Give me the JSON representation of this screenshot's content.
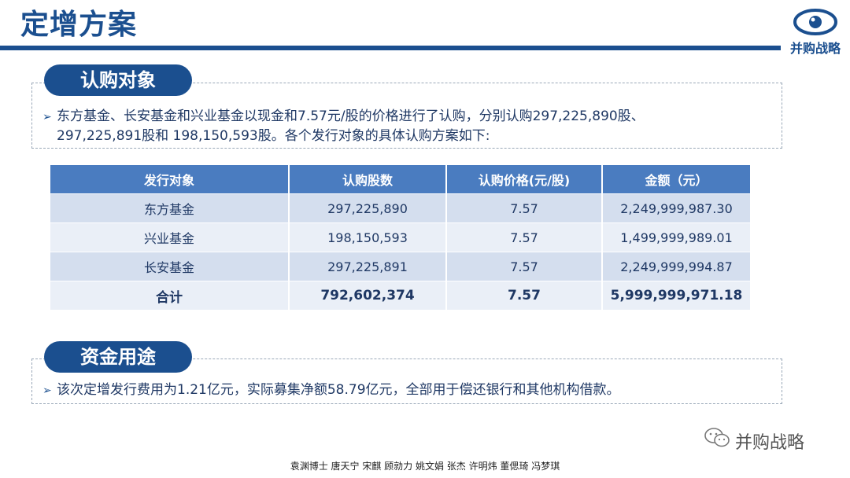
{
  "header": {
    "title": "定增方案",
    "logo_text": "并购战略",
    "logo_icon": "eye-icon",
    "accent_color": "#1b4f8f"
  },
  "section1": {
    "label": "认购对象",
    "bullet_line1": "东方基金、长安基金和兴业基金以现金和7.57元/股的价格进行了认购，分别认购297,225,890股、",
    "bullet_line2": "297,225,891股和 198,150,593股。各个发行对象的具体认购方案如下:"
  },
  "table": {
    "headers": [
      "发行对象",
      "认购股数",
      "认购价格(元/股)",
      "金额（元）"
    ],
    "rows": [
      [
        "东方基金",
        "297,225,890",
        "7.57",
        "2,249,999,987.30"
      ],
      [
        "兴业基金",
        "198,150,593",
        "7.57",
        "1,499,999,989.01"
      ],
      [
        "长安基金",
        "297,225,891",
        "7.57",
        "2,249,999,994.87"
      ]
    ],
    "total": [
      "合计",
      "792,602,374",
      "7.57",
      "5,999,999,971.18"
    ]
  },
  "section2": {
    "label": "资金用途",
    "bullet_line1": "该次定增发行费用为1.21亿元，实际募集净额58.79亿元，全部用于偿还银行和其他机构借款。"
  },
  "watermark": {
    "text": "并购战略",
    "icon": "wechat-icon"
  },
  "footer": {
    "authors": "袁渊博士 唐天宁 宋麒 顾勍力 姚文娟 张杰 许明炜 董偲琦 冯梦琪"
  }
}
